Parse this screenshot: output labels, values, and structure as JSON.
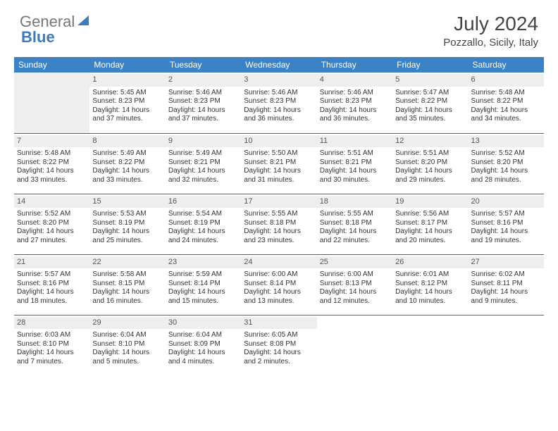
{
  "brand": {
    "part1": "General",
    "part2": "Blue"
  },
  "title": {
    "month": "July 2024",
    "location": "Pozzallo, Sicily, Italy"
  },
  "colors": {
    "header_bg": "#3b82c4",
    "header_text": "#ffffff",
    "daynum_bg": "#eeeeee",
    "row_border": "#2f6aa0",
    "text": "#333333",
    "brand_gray": "#777777",
    "brand_blue": "#3b7bbf"
  },
  "daysOfWeek": [
    "Sunday",
    "Monday",
    "Tuesday",
    "Wednesday",
    "Thursday",
    "Friday",
    "Saturday"
  ],
  "layout": {
    "rows": 5,
    "cols": 7,
    "first_weekday_index": 1,
    "days_in_month": 31
  },
  "days": {
    "1": {
      "sunrise": "5:45 AM",
      "sunset": "8:23 PM",
      "daylight": "14 hours and 37 minutes."
    },
    "2": {
      "sunrise": "5:46 AM",
      "sunset": "8:23 PM",
      "daylight": "14 hours and 37 minutes."
    },
    "3": {
      "sunrise": "5:46 AM",
      "sunset": "8:23 PM",
      "daylight": "14 hours and 36 minutes."
    },
    "4": {
      "sunrise": "5:46 AM",
      "sunset": "8:23 PM",
      "daylight": "14 hours and 36 minutes."
    },
    "5": {
      "sunrise": "5:47 AM",
      "sunset": "8:22 PM",
      "daylight": "14 hours and 35 minutes."
    },
    "6": {
      "sunrise": "5:48 AM",
      "sunset": "8:22 PM",
      "daylight": "14 hours and 34 minutes."
    },
    "7": {
      "sunrise": "5:48 AM",
      "sunset": "8:22 PM",
      "daylight": "14 hours and 33 minutes."
    },
    "8": {
      "sunrise": "5:49 AM",
      "sunset": "8:22 PM",
      "daylight": "14 hours and 33 minutes."
    },
    "9": {
      "sunrise": "5:49 AM",
      "sunset": "8:21 PM",
      "daylight": "14 hours and 32 minutes."
    },
    "10": {
      "sunrise": "5:50 AM",
      "sunset": "8:21 PM",
      "daylight": "14 hours and 31 minutes."
    },
    "11": {
      "sunrise": "5:51 AM",
      "sunset": "8:21 PM",
      "daylight": "14 hours and 30 minutes."
    },
    "12": {
      "sunrise": "5:51 AM",
      "sunset": "8:20 PM",
      "daylight": "14 hours and 29 minutes."
    },
    "13": {
      "sunrise": "5:52 AM",
      "sunset": "8:20 PM",
      "daylight": "14 hours and 28 minutes."
    },
    "14": {
      "sunrise": "5:52 AM",
      "sunset": "8:20 PM",
      "daylight": "14 hours and 27 minutes."
    },
    "15": {
      "sunrise": "5:53 AM",
      "sunset": "8:19 PM",
      "daylight": "14 hours and 25 minutes."
    },
    "16": {
      "sunrise": "5:54 AM",
      "sunset": "8:19 PM",
      "daylight": "14 hours and 24 minutes."
    },
    "17": {
      "sunrise": "5:55 AM",
      "sunset": "8:18 PM",
      "daylight": "14 hours and 23 minutes."
    },
    "18": {
      "sunrise": "5:55 AM",
      "sunset": "8:18 PM",
      "daylight": "14 hours and 22 minutes."
    },
    "19": {
      "sunrise": "5:56 AM",
      "sunset": "8:17 PM",
      "daylight": "14 hours and 20 minutes."
    },
    "20": {
      "sunrise": "5:57 AM",
      "sunset": "8:16 PM",
      "daylight": "14 hours and 19 minutes."
    },
    "21": {
      "sunrise": "5:57 AM",
      "sunset": "8:16 PM",
      "daylight": "14 hours and 18 minutes."
    },
    "22": {
      "sunrise": "5:58 AM",
      "sunset": "8:15 PM",
      "daylight": "14 hours and 16 minutes."
    },
    "23": {
      "sunrise": "5:59 AM",
      "sunset": "8:14 PM",
      "daylight": "14 hours and 15 minutes."
    },
    "24": {
      "sunrise": "6:00 AM",
      "sunset": "8:14 PM",
      "daylight": "14 hours and 13 minutes."
    },
    "25": {
      "sunrise": "6:00 AM",
      "sunset": "8:13 PM",
      "daylight": "14 hours and 12 minutes."
    },
    "26": {
      "sunrise": "6:01 AM",
      "sunset": "8:12 PM",
      "daylight": "14 hours and 10 minutes."
    },
    "27": {
      "sunrise": "6:02 AM",
      "sunset": "8:11 PM",
      "daylight": "14 hours and 9 minutes."
    },
    "28": {
      "sunrise": "6:03 AM",
      "sunset": "8:10 PM",
      "daylight": "14 hours and 7 minutes."
    },
    "29": {
      "sunrise": "6:04 AM",
      "sunset": "8:10 PM",
      "daylight": "14 hours and 5 minutes."
    },
    "30": {
      "sunrise": "6:04 AM",
      "sunset": "8:09 PM",
      "daylight": "14 hours and 4 minutes."
    },
    "31": {
      "sunrise": "6:05 AM",
      "sunset": "8:08 PM",
      "daylight": "14 hours and 2 minutes."
    }
  },
  "labels": {
    "sunrise": "Sunrise:",
    "sunset": "Sunset:",
    "daylight": "Daylight:"
  }
}
